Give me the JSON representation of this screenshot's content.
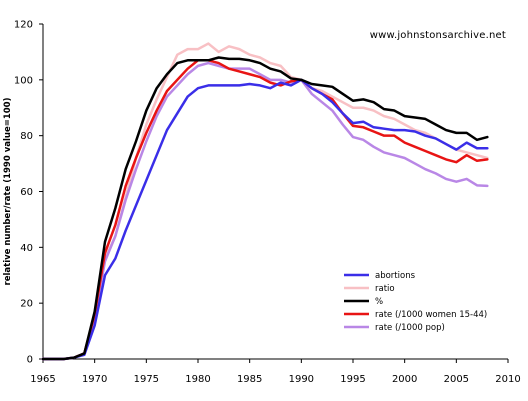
{
  "chart_data": {
    "type": "line",
    "title": "",
    "xlabel": "",
    "ylabel": "relative number/rate (1990 value=100)",
    "annotation": "www.johnstonsarchive.net",
    "xlim": [
      1965,
      2010
    ],
    "ylim": [
      0,
      120
    ],
    "xticks": [
      1965,
      1970,
      1975,
      1980,
      1985,
      1990,
      1995,
      2000,
      2005,
      2010
    ],
    "yticks": [
      0,
      20,
      40,
      60,
      80,
      100,
      120
    ],
    "grid": false,
    "legend_position": "bottom-right",
    "x": [
      1965,
      1966,
      1967,
      1968,
      1969,
      1970,
      1971,
      1972,
      1973,
      1974,
      1975,
      1976,
      1977,
      1978,
      1979,
      1980,
      1981,
      1982,
      1983,
      1984,
      1985,
      1986,
      1987,
      1988,
      1989,
      1990,
      1991,
      1992,
      1993,
      1994,
      1995,
      1996,
      1997,
      1998,
      1999,
      2000,
      2001,
      2002,
      2003,
      2004,
      2005,
      2006,
      2007,
      2008
    ],
    "series": [
      {
        "name": "abortions",
        "color": "#3a2ee8",
        "values": [
          0,
          0,
          0,
          0.5,
          1.5,
          12,
          30,
          36,
          46,
          55,
          64,
          73,
          82,
          88,
          94,
          97,
          98,
          98,
          98,
          98,
          98.5,
          98,
          97,
          99,
          98,
          100,
          97,
          95,
          92,
          88,
          84.5,
          85,
          83,
          82.5,
          82,
          82,
          81.5,
          80,
          79,
          77,
          75,
          77.5,
          75.5,
          75.5
        ]
      },
      {
        "name": "ratio",
        "color": "#f8c0c4",
        "values": [
          0,
          0,
          0,
          0.5,
          2,
          15,
          36,
          44,
          58,
          72,
          84,
          93,
          101,
          109,
          111,
          111,
          113,
          110,
          112,
          111,
          109,
          108,
          106,
          105,
          101,
          100,
          97,
          96,
          94,
          92,
          90,
          90,
          89,
          87,
          86,
          84,
          82,
          81,
          79,
          77,
          75,
          74,
          73,
          72
        ]
      },
      {
        "name": "%",
        "color": "#000000",
        "values": [
          0,
          0,
          0,
          0.5,
          2,
          17,
          42,
          54,
          68,
          78,
          89,
          97,
          102,
          106,
          107,
          107,
          107,
          108,
          107.5,
          107.5,
          107,
          106,
          104,
          103,
          100.5,
          100,
          98.5,
          98,
          97.5,
          95,
          92.5,
          93,
          92,
          89.5,
          89,
          87,
          86.5,
          86,
          84,
          82,
          81,
          81,
          78.5,
          79.5
        ]
      },
      {
        "name": "rate (/1000 women 15-44)",
        "color": "#e81414",
        "values": [
          0,
          0,
          0,
          0.5,
          2,
          16,
          38,
          48,
          62,
          72,
          81,
          89,
          96,
          100,
          104,
          107,
          107,
          106,
          104,
          103,
          102,
          101,
          99,
          98,
          99.5,
          100,
          97,
          95,
          93,
          88,
          83.5,
          83,
          81.5,
          80,
          80,
          77.5,
          76,
          74.5,
          73,
          71.5,
          70.5,
          73,
          71,
          71.5
        ]
      },
      {
        "name": "rate (/1000 pop)",
        "color": "#b987e6",
        "values": [
          0,
          0,
          0,
          0.5,
          2,
          15,
          35,
          44,
          57,
          68,
          78,
          87,
          94,
          98,
          102,
          105,
          106,
          105,
          104,
          104,
          104,
          102,
          100,
          100,
          99,
          100,
          95,
          92,
          89,
          84,
          79.5,
          78.5,
          76,
          74,
          73,
          72,
          70,
          68,
          66.5,
          64.5,
          63.5,
          64.5,
          62.2,
          62
        ]
      }
    ]
  }
}
